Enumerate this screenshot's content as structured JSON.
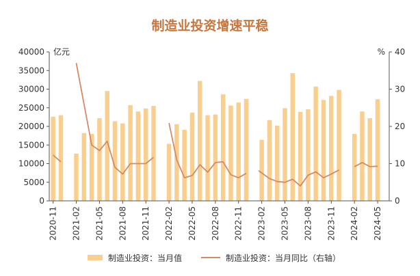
{
  "chart_data": {
    "type": "bar",
    "title": "制造业投资增速平稳",
    "left_unit": "亿元",
    "right_unit": "%",
    "ylim_left": [
      0,
      40000
    ],
    "ylim_right": [
      0,
      40
    ],
    "yticks_left": [
      "0",
      "5000",
      "10000",
      "15000",
      "20000",
      "25000",
      "30000",
      "35000",
      "40000"
    ],
    "yticks_right": [
      "0",
      "10",
      "20",
      "30",
      "40"
    ],
    "xtick_labels": [
      "2020-11",
      "2021-02",
      "2021-05",
      "2021-08",
      "2021-11",
      "2022-02",
      "2022-05",
      "2022-08",
      "2022-11",
      "2023-02",
      "2023-05",
      "2023-08",
      "2023-11",
      "2024-02",
      "2024-05"
    ],
    "categories": [
      "2020-11",
      "2020-12",
      "2021-01",
      "2021-02",
      "2021-03",
      "2021-04",
      "2021-05",
      "2021-06",
      "2021-07",
      "2021-08",
      "2021-09",
      "2021-10",
      "2021-11",
      "2021-12",
      "2022-01",
      "2022-02",
      "2022-03",
      "2022-04",
      "2022-05",
      "2022-06",
      "2022-07",
      "2022-08",
      "2022-09",
      "2022-10",
      "2022-11",
      "2022-12",
      "2023-01",
      "2023-02",
      "2023-03",
      "2023-04",
      "2023-05",
      "2023-06",
      "2023-07",
      "2023-08",
      "2023-09",
      "2023-10",
      "2023-11",
      "2023-12",
      "2024-01",
      "2024-02",
      "2024-03",
      "2024-04",
      "2024-05",
      "2024-06"
    ],
    "series": [
      {
        "name": "制造业投资：当月值",
        "type": "bar",
        "axis": "left",
        "color": "#f9cf8f",
        "values": [
          22600,
          23000,
          null,
          12700,
          18200,
          18000,
          22200,
          29500,
          21400,
          20800,
          25700,
          24000,
          24800,
          25500,
          null,
          15300,
          20600,
          19100,
          23700,
          32200,
          23000,
          23200,
          28600,
          25600,
          26400,
          27400,
          null,
          16400,
          21700,
          20200,
          24900,
          34300,
          23900,
          24600,
          30700,
          27100,
          28200,
          29800,
          null,
          18000,
          24000,
          22200,
          27300,
          null
        ]
      },
      {
        "name": "制造业投资：当月同比（右轴）",
        "type": "line",
        "axis": "right",
        "color": "#d48a63",
        "values": [
          12.3,
          10.5,
          null,
          37.0,
          26.0,
          15.0,
          13.5,
          16.0,
          9.0,
          7.2,
          10.0,
          10.0,
          10.0,
          11.7,
          null,
          20.9,
          11.0,
          6.2,
          6.8,
          9.7,
          7.7,
          10.3,
          10.5,
          7.0,
          6.2,
          7.4,
          null,
          8.1,
          6.0,
          5.2,
          5.0,
          5.8,
          4.0,
          6.9,
          7.8,
          6.2,
          7.2,
          8.3,
          null,
          9.2,
          10.3,
          9.2,
          9.3,
          null
        ],
        "line_x_index": [
          0,
          1,
          null,
          3,
          4,
          5,
          6,
          7,
          8,
          9,
          10,
          11,
          12,
          13,
          null,
          15,
          16,
          17,
          18,
          19,
          20,
          21,
          22,
          23,
          24,
          25,
          null,
          26.6,
          28,
          29,
          30,
          31,
          32,
          33,
          34,
          35,
          36,
          37,
          null,
          39,
          40,
          41,
          42,
          43
        ]
      }
    ],
    "legend_position": "bottom",
    "grid": false
  }
}
